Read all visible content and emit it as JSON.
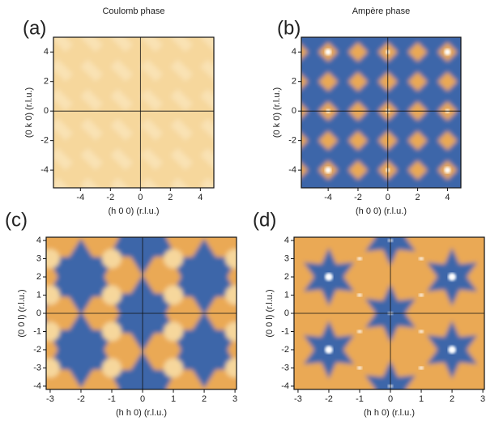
{
  "chart_data": [
    {
      "type": "heatmap",
      "panel_label": "(a)",
      "title": "Coulomb phase",
      "xlabel": "(h 0 0) (r.l.u.)",
      "ylabel": "(0 k 0) (r.l.u.)",
      "xlim": [
        -5.8,
        4.9
      ],
      "ylim": [
        -5.2,
        5
      ],
      "xticks": [
        -4,
        -2,
        0,
        2,
        4
      ],
      "yticks": [
        -4,
        -2,
        0,
        2,
        4
      ]
    },
    {
      "type": "heatmap",
      "panel_label": "(b)",
      "title": "Ampère phase",
      "xlabel": "(h 0 0) (r.l.u.)",
      "ylabel": "(0 k 0) (r.l.u.)",
      "xlim": [
        -5.8,
        4.9
      ],
      "ylim": [
        -5.2,
        5
      ],
      "xticks": [
        -4,
        -2,
        0,
        2,
        4
      ],
      "yticks": [
        -4,
        -2,
        0,
        2,
        4
      ]
    },
    {
      "type": "heatmap",
      "panel_label": "(c)",
      "xlabel": "(h h 0) (r.l.u.)",
      "ylabel": "(0 0 l) (r.l.u.)",
      "xlim": [
        -3.13,
        3.05
      ],
      "ylim": [
        -4.18,
        4.18
      ],
      "xticks": [
        -3,
        -2,
        -1,
        0,
        1,
        2,
        3
      ],
      "yticks": [
        -4,
        -3,
        -2,
        -1,
        0,
        1,
        2,
        3,
        4
      ]
    },
    {
      "type": "heatmap",
      "panel_label": "(d)",
      "xlabel": "(h h 0) (r.l.u.)",
      "ylabel": "(0 0 l) (r.l.u.)",
      "xlim": [
        -3.13,
        3.05
      ],
      "ylim": [
        -4.18,
        4.18
      ],
      "xticks": [
        -3,
        -2,
        -1,
        0,
        1,
        2,
        3
      ],
      "yticks": [
        -4,
        -3,
        -2,
        -1,
        0,
        1,
        2,
        3,
        4
      ]
    }
  ]
}
